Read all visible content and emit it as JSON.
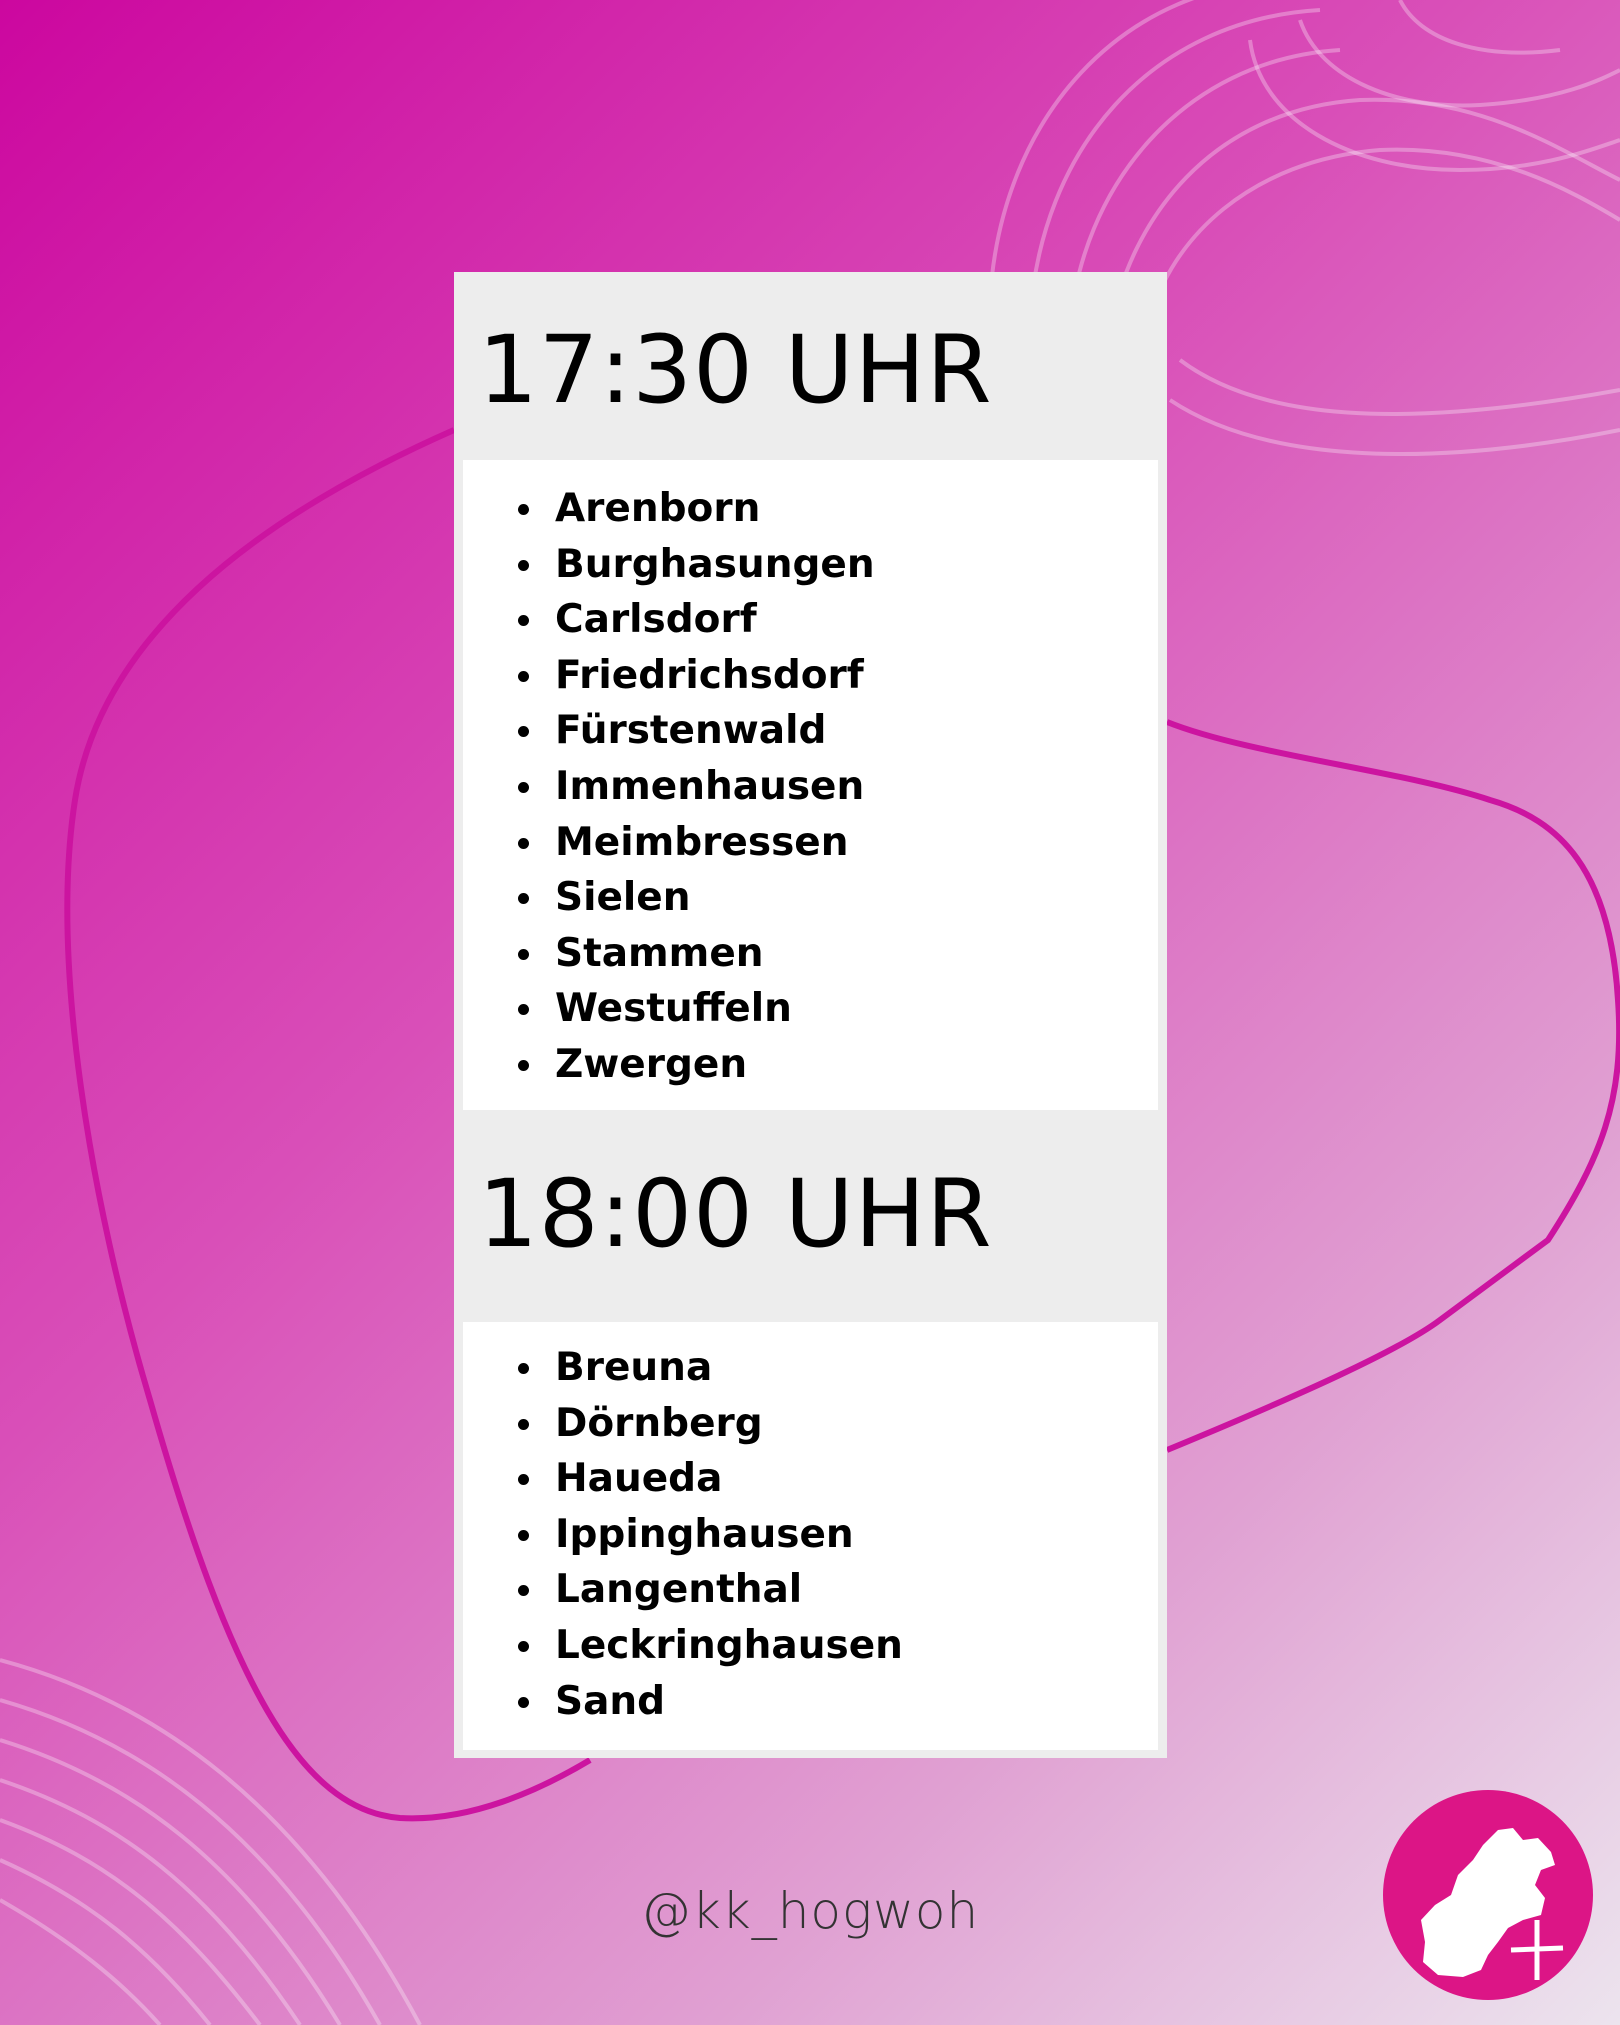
{
  "sections": [
    {
      "time": "17:30 UHR",
      "places": [
        "Arenborn",
        "Burghasungen",
        "Carlsdorf",
        "Friedrichsdorf",
        "Fürstenwald",
        "Immenhausen",
        "Meimbressen",
        "Sielen",
        "Stammen",
        "Westuffeln",
        "Zwergen"
      ]
    },
    {
      "time": "18:00 UHR",
      "places": [
        "Breuna",
        "Dörnberg",
        "Haueda",
        "Ippinghausen",
        "Langenthal",
        "Leckringhausen",
        "Sand"
      ]
    }
  ],
  "handle": "@kk_hogwoh",
  "colors": {
    "accent": "#dc1586",
    "line": "#cc14a0",
    "card_header": "#ededed"
  },
  "logo": {
    "icon": "district-map-with-cross-icon"
  }
}
